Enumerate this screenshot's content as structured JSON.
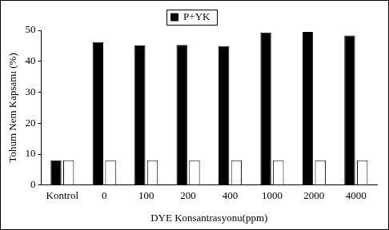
{
  "chart_data": {
    "type": "bar",
    "categories": [
      "Kontrol",
      "0",
      "100",
      "200",
      "400",
      "1000",
      "2000",
      "4000"
    ],
    "series": [
      {
        "name": "P+YK",
        "color": "#000000",
        "values": [
          8,
          46.2,
          45.1,
          45.3,
          44.9,
          49.3,
          49.5,
          48.3
        ]
      },
      {
        "color": "#ffffff",
        "values": [
          8,
          8,
          8,
          8,
          8,
          8,
          8,
          8
        ]
      }
    ],
    "x_label": "DYE Konsantrasyonu(ppm)",
    "y_label": "Tohum Nem Kapsamı (%)",
    "ylim": [
      0,
      50
    ],
    "yticks": [
      0,
      10,
      20,
      30,
      40,
      50
    ],
    "grid": false,
    "legend": "top"
  }
}
